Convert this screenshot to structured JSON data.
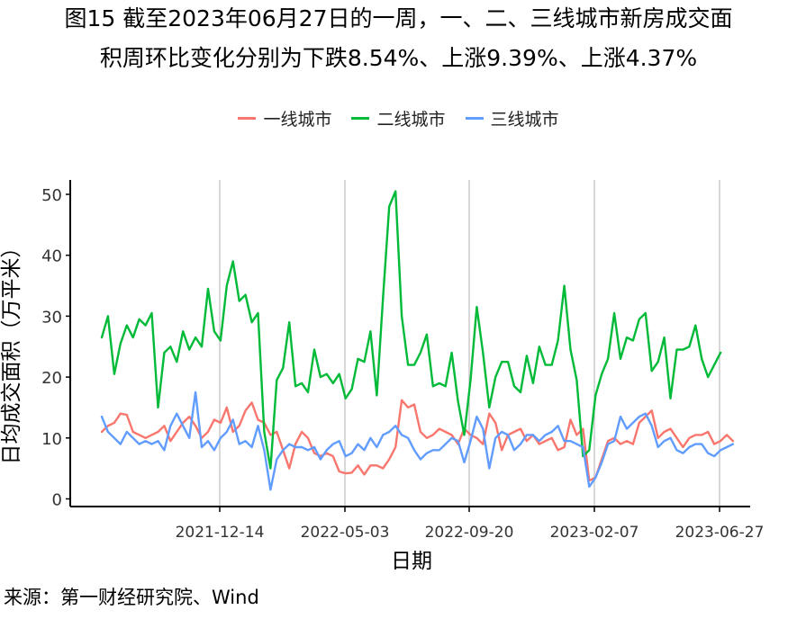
{
  "title_line1": "图15  截至2023年06月27日的一周，一、二、三线城市新房成交面",
  "title_line2": "积周环比变化分别为下跌8.54%、上涨9.39%、上涨4.37%",
  "source": "来源：第一财经研究院、Wind",
  "chart_data": {
    "type": "line",
    "xlabel": "日期",
    "ylabel": "日均成交面积（万平米）",
    "ylim": [
      0,
      52
    ],
    "yticks": [
      0,
      10,
      20,
      30,
      40,
      50
    ],
    "xticks": [
      "2021-12-14",
      "2022-05-03",
      "2022-09-20",
      "2023-02-07",
      "2023-06-27"
    ],
    "grid": "vertical-at-xticks",
    "legend_position": "top",
    "x_start_week_index": -18,
    "series": [
      {
        "name": "一线城市",
        "color": "#F8766D",
        "values": [
          11.0,
          12.0,
          12.5,
          14.0,
          13.8,
          11.0,
          10.5,
          10.0,
          10.5,
          11.0,
          12.0,
          9.5,
          11.0,
          12.5,
          13.5,
          12.0,
          10.0,
          11.0,
          13.0,
          12.5,
          15.0,
          11.0,
          12.0,
          14.5,
          15.8,
          13.0,
          12.5,
          10.5,
          11.0,
          8.0,
          5.0,
          9.0,
          11.0,
          10.0,
          7.5,
          7.0,
          7.5,
          7.0,
          4.5,
          4.2,
          4.3,
          5.5,
          4.0,
          5.5,
          5.5,
          5.0,
          6.5,
          8.5,
          16.2,
          15.0,
          15.5,
          11.0,
          10.0,
          10.5,
          11.5,
          11.0,
          10.5,
          9.0,
          11.5,
          10.5,
          10.0,
          9.0,
          14.0,
          12.5,
          8.0,
          10.5,
          11.0,
          11.5,
          9.5,
          10.5,
          9.0,
          9.5,
          10.0,
          8.0,
          8.5,
          13.0,
          10.5,
          11.5,
          3.0,
          3.5,
          6.5,
          9.5,
          10.0,
          9.0,
          9.5,
          9.0,
          12.5,
          13.5,
          14.5,
          10.0,
          11.0,
          11.5,
          10.0,
          8.5,
          10.0,
          10.5,
          10.5,
          11.0,
          9.0,
          9.5,
          10.5,
          9.5
        ]
      },
      {
        "name": "二线城市",
        "color": "#00BA38",
        "values": [
          26.5,
          30.0,
          20.5,
          25.5,
          28.5,
          26.5,
          29.5,
          28.5,
          30.5,
          15.0,
          24.0,
          25.0,
          22.5,
          27.5,
          24.5,
          26.5,
          25.0,
          34.5,
          27.5,
          26.0,
          35.0,
          39.0,
          32.5,
          33.5,
          29.0,
          30.5,
          11.0,
          5.0,
          19.5,
          21.5,
          29.0,
          18.5,
          19.0,
          17.5,
          24.5,
          20.0,
          20.5,
          19.0,
          20.5,
          16.5,
          18.0,
          23.0,
          22.5,
          27.5,
          17.0,
          33.0,
          48.0,
          50.5,
          30.0,
          22.0,
          22.0,
          24.0,
          27.0,
          18.5,
          19.0,
          18.5,
          24.0,
          16.0,
          10.5,
          19.5,
          31.5,
          24.0,
          15.0,
          20.0,
          22.5,
          22.5,
          18.5,
          17.5,
          23.5,
          19.0,
          25.0,
          22.0,
          22.0,
          26.0,
          35.0,
          24.5,
          19.5,
          7.0,
          8.0,
          17.0,
          20.5,
          23.0,
          30.5,
          23.0,
          26.5,
          26.0,
          29.5,
          30.5,
          21.0,
          22.5,
          26.5,
          16.5,
          24.5,
          24.5,
          25.0,
          28.5,
          23.0,
          20.0,
          22.0,
          24.0
        ]
      },
      {
        "name": "三线城市",
        "color": "#619CFF",
        "values": [
          13.5,
          11.0,
          10.0,
          9.0,
          11.0,
          10.0,
          9.0,
          9.5,
          9.0,
          9.5,
          8.0,
          12.0,
          14.0,
          12.0,
          10.0,
          17.5,
          8.5,
          9.5,
          8.0,
          10.0,
          11.0,
          13.0,
          9.0,
          9.5,
          8.5,
          12.0,
          8.0,
          1.5,
          6.5,
          8.0,
          9.0,
          8.5,
          8.5,
          8.0,
          8.5,
          6.5,
          8.0,
          9.0,
          9.5,
          7.0,
          7.5,
          9.0,
          8.0,
          10.0,
          8.5,
          10.5,
          11.0,
          12.0,
          10.5,
          10.0,
          8.0,
          6.5,
          7.5,
          8.0,
          8.0,
          9.0,
          10.0,
          9.5,
          6.0,
          9.5,
          13.5,
          11.5,
          5.0,
          10.0,
          11.0,
          10.5,
          8.0,
          9.0,
          10.5,
          10.5,
          9.5,
          10.5,
          11.0,
          12.0,
          9.5,
          9.5,
          9.0,
          8.5,
          2.0,
          3.5,
          6.0,
          9.0,
          9.5,
          13.5,
          11.5,
          12.5,
          13.5,
          14.0,
          12.0,
          8.5,
          9.5,
          10.0,
          8.0,
          7.5,
          8.5,
          9.0,
          9.0,
          7.5,
          7.0,
          8.0,
          8.5,
          9.0
        ]
      }
    ]
  }
}
